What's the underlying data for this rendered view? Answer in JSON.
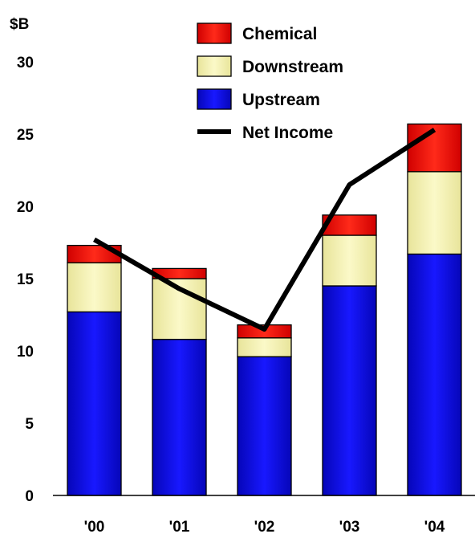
{
  "chart_data": {
    "type": "bar",
    "stacked": true,
    "unit_label": "$B",
    "categories": [
      "'00",
      "'01",
      "'02",
      "'03",
      "'04"
    ],
    "ylim": [
      0,
      30
    ],
    "yticks": [
      "0",
      "5",
      "10",
      "15",
      "20",
      "25",
      "30"
    ],
    "series": [
      {
        "name": "Upstream",
        "kind": "bar",
        "color": "#0a0ad8",
        "values": [
          12.7,
          10.8,
          9.6,
          14.5,
          16.7
        ]
      },
      {
        "name": "Downstream",
        "kind": "bar",
        "color": "#f2f0b0",
        "values": [
          3.4,
          4.2,
          1.3,
          3.5,
          5.7
        ]
      },
      {
        "name": "Chemical",
        "kind": "bar",
        "color": "#e81010",
        "values": [
          1.2,
          0.7,
          0.9,
          1.4,
          3.3
        ]
      },
      {
        "name": "Net Income",
        "kind": "line",
        "color": "#000000",
        "values": [
          17.7,
          14.3,
          11.5,
          21.5,
          25.3
        ]
      }
    ],
    "legend": [
      {
        "label": "Chemical",
        "color": "#e81010",
        "kind": "box"
      },
      {
        "label": "Downstream",
        "color": "#f2f0b0",
        "kind": "box"
      },
      {
        "label": "Upstream",
        "color": "#0a0ad8",
        "kind": "box"
      },
      {
        "label": "Net Income",
        "color": "#000000",
        "kind": "line"
      }
    ],
    "legend_position": "top-right",
    "grid": false
  }
}
